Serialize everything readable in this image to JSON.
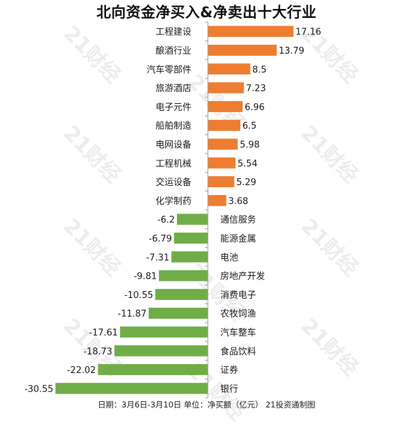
{
  "title": "北向资金净买入&净卖出十大行业",
  "footer": "日期：3月6日-3月10日  单位：净买额（亿元）  21投资通制图",
  "watermark": "21财经",
  "colors": {
    "positive": "#ED7D31",
    "negative": "#70AD47",
    "axis": "#9a9a9a",
    "text": "#1a1a1a"
  },
  "chart_data": {
    "type": "bar",
    "orientation": "horizontal",
    "title": "北向资金净买入&净卖出十大行业",
    "categories": [
      "工程建设",
      "酿酒行业",
      "汽车零部件",
      "旅游酒店",
      "电子元件",
      "船舶制造",
      "电网设备",
      "工程机械",
      "交运设备",
      "化学制药",
      "通信服务",
      "能源金属",
      "电池",
      "房地产开发",
      "消费电子",
      "农牧饲渔",
      "汽车整车",
      "食品饮料",
      "证券",
      "银行"
    ],
    "values": [
      17.16,
      13.79,
      8.5,
      7.23,
      6.96,
      6.5,
      5.98,
      5.54,
      5.29,
      3.68,
      -6.2,
      -6.79,
      -7.31,
      -9.81,
      -10.55,
      -11.87,
      -17.61,
      -18.73,
      -22.02,
      -30.55
    ],
    "value_labels": [
      "17.16",
      "13.79",
      "8.5",
      "7.23",
      "6.96",
      "6.5",
      "5.98",
      "5.54",
      "5.29",
      "3.68",
      "-6.2",
      "-6.79",
      "-7.31",
      "-9.81",
      "-10.55",
      "-11.87",
      "-17.61",
      "-18.73",
      "-22.02",
      "-30.55"
    ],
    "xlabel": "",
    "ylabel": "",
    "grid": false,
    "legend": "none"
  }
}
